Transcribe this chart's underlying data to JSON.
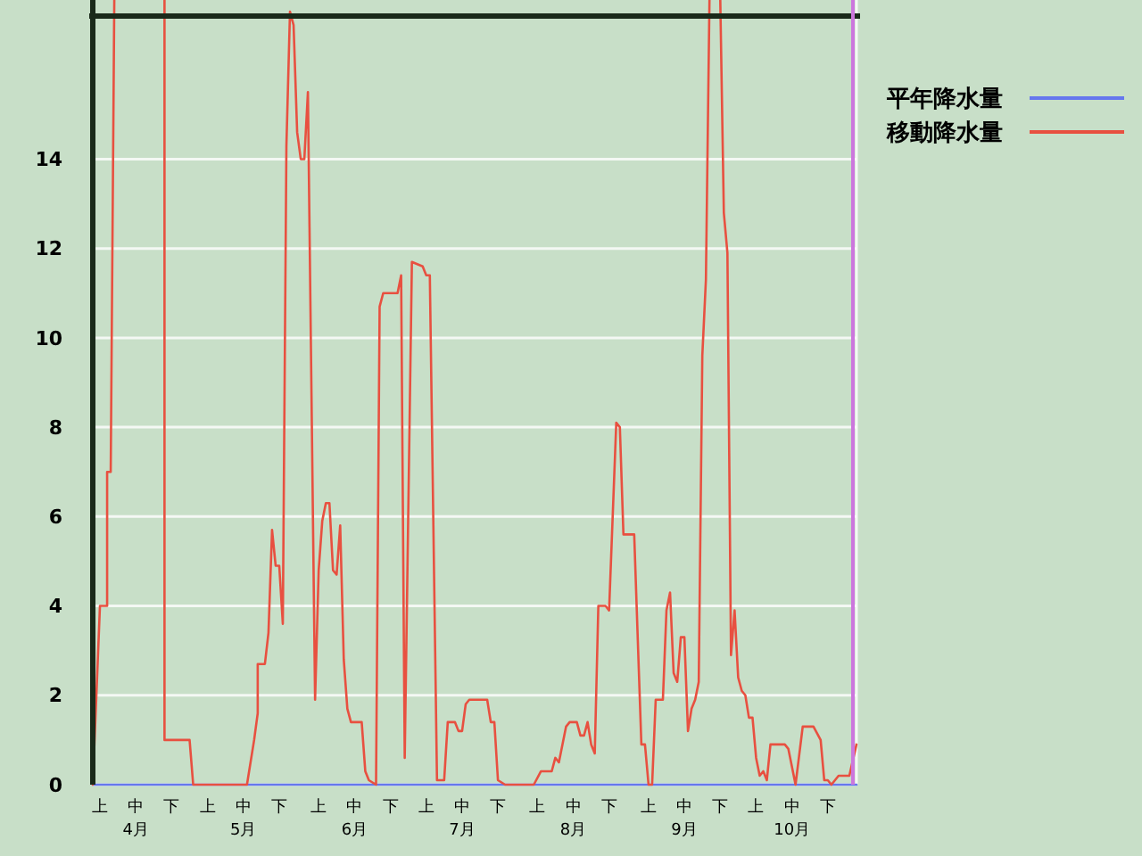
{
  "chart_data": {
    "type": "line",
    "xlim": [
      "--04-01",
      "--10-31"
    ],
    "ylim": [
      0,
      18
    ],
    "xticks": [
      {
        "value": "--04-03",
        "label": "上"
      },
      {
        "value": "--04-13",
        "label": "中\n4月"
      },
      {
        "value": "--04-23",
        "label": "下"
      },
      {
        "value": "--05-03",
        "label": "上"
      },
      {
        "value": "--05-13",
        "label": "中\n5月"
      },
      {
        "value": "--05-23",
        "label": "下"
      },
      {
        "value": "--06-03",
        "label": "上"
      },
      {
        "value": "--06-13",
        "label": "中\n6月"
      },
      {
        "value": "--06-23",
        "label": "下"
      },
      {
        "value": "--07-03",
        "label": "上"
      },
      {
        "value": "--07-13",
        "label": "中\n7月"
      },
      {
        "value": "--07-23",
        "label": "下"
      },
      {
        "value": "--08-03",
        "label": "上"
      },
      {
        "value": "--08-13",
        "label": "中\n8月"
      },
      {
        "value": "--08-23",
        "label": "下"
      },
      {
        "value": "--09-03",
        "label": "上"
      },
      {
        "value": "--09-13",
        "label": "中\n9月"
      },
      {
        "value": "--09-23",
        "label": "下"
      },
      {
        "value": "--10-03",
        "label": "上"
      },
      {
        "value": "--10-13",
        "label": "中\n10月"
      },
      {
        "value": "--10-23",
        "label": "下"
      }
    ],
    "yticks": [
      0,
      2,
      4,
      6,
      8,
      10,
      12,
      14
    ],
    "grid": "y",
    "legend": "top right",
    "marker": "none",
    "line_style": "solid",
    "ref_lines": [
      {
        "axis": "y",
        "value": 17.2,
        "color": "#1a2a1a"
      },
      {
        "axis": "x",
        "value": "--10-30",
        "color": "#cc77dd"
      }
    ],
    "series": [
      {
        "name": "平年降水量",
        "color": "#6677ee",
        "x": [
          "--04-01",
          "--10-31"
        ],
        "values": [
          0,
          0
        ]
      },
      {
        "name": "移動降水量",
        "color": "#e85040",
        "x": [
          "--04-01",
          "--04-03",
          "--04-05",
          "--04-05",
          "--04-06",
          "--04-07",
          "--04-21",
          "--04-21",
          "--04-28",
          "--04-29",
          "--05-14",
          "--05-16",
          "--05-17",
          "--05-17",
          "--05-19",
          "--05-20",
          "--05-21",
          "--05-22",
          "--05-23",
          "--05-24",
          "--05-25",
          "--05-26",
          "--05-27",
          "--05-28",
          "--05-29",
          "--05-30",
          "--05-31",
          "--06-02",
          "--06-03",
          "--06-04",
          "--06-05",
          "--06-06",
          "--06-07",
          "--06-08",
          "--06-09",
          "--06-10",
          "--06-11",
          "--06-12",
          "--06-15",
          "--06-16",
          "--06-17",
          "--06-19",
          "--06-20",
          "--06-21",
          "--06-25",
          "--06-26",
          "--06-27",
          "--06-29",
          "--07-02",
          "--07-03",
          "--07-04",
          "--07-06",
          "--07-08",
          "--07-09",
          "--07-11",
          "--07-12",
          "--07-13",
          "--07-14",
          "--07-15",
          "--07-20",
          "--07-21",
          "--07-22",
          "--07-23",
          "--07-25",
          "--08-02",
          "--08-04",
          "--08-07",
          "--08-08",
          "--08-09",
          "--08-11",
          "--08-12",
          "--08-14",
          "--08-15",
          "--08-16",
          "--08-17",
          "--08-18",
          "--08-19",
          "--08-20",
          "--08-22",
          "--08-23",
          "--08-25",
          "--08-26",
          "--08-27",
          "--08-30",
          "--09-01",
          "--09-02",
          "--09-03",
          "--09-04",
          "--09-05",
          "--09-07",
          "--09-08",
          "--09-09",
          "--09-10",
          "--09-11",
          "--09-12",
          "--09-13",
          "--09-14",
          "--09-15",
          "--09-16",
          "--09-17",
          "--09-18",
          "--09-19",
          "--09-20",
          "--09-23",
          "--09-24",
          "--09-25",
          "--09-26",
          "--09-27",
          "--09-28",
          "--09-29",
          "--09-30",
          "--10-01",
          "--10-02",
          "--10-03",
          "--10-04",
          "--10-05",
          "--10-06",
          "--10-07",
          "--10-11",
          "--10-12",
          "--10-14",
          "--10-16",
          "--10-19",
          "--10-21",
          "--10-22",
          "--10-23",
          "--10-24",
          "--10-26",
          "--10-29",
          "--10-31"
        ],
        "values": [
          0,
          4.0,
          4.0,
          7.0,
          7.0,
          17.6,
          17.6,
          1.0,
          1.0,
          0,
          0,
          1.0,
          1.6,
          2.7,
          2.7,
          3.4,
          5.7,
          4.9,
          4.9,
          3.6,
          14.3,
          17.3,
          17.0,
          14.6,
          14.0,
          14.0,
          15.5,
          1.9,
          4.8,
          5.9,
          6.3,
          6.3,
          4.8,
          4.7,
          5.8,
          2.8,
          1.7,
          1.4,
          1.4,
          0.3,
          0.1,
          0,
          10.7,
          11.0,
          11.0,
          11.4,
          0.6,
          11.7,
          11.6,
          11.4,
          11.4,
          0.1,
          0.1,
          1.4,
          1.4,
          1.2,
          1.2,
          1.8,
          1.9,
          1.9,
          1.4,
          1.4,
          0.1,
          0,
          0,
          0.3,
          0.3,
          0.6,
          0.5,
          1.3,
          1.4,
          1.4,
          1.1,
          1.1,
          1.4,
          0.9,
          0.7,
          4.0,
          4.0,
          3.9,
          8.1,
          8.0,
          5.6,
          5.6,
          0.9,
          0.9,
          0,
          0,
          1.9,
          1.9,
          3.9,
          4.3,
          2.5,
          2.3,
          3.3,
          3.3,
          1.2,
          1.7,
          1.9,
          2.3,
          9.6,
          11.3,
          17.6,
          17.6,
          12.8,
          11.9,
          2.9,
          3.9,
          2.4,
          2.1,
          2.0,
          1.5,
          1.5,
          0.6,
          0.2,
          0.3,
          0.1,
          0.9,
          0.9,
          0.8,
          0,
          1.3,
          1.3,
          1.0,
          0.1,
          0.1,
          0,
          0.2,
          0.2,
          0.9
        ]
      }
    ]
  }
}
